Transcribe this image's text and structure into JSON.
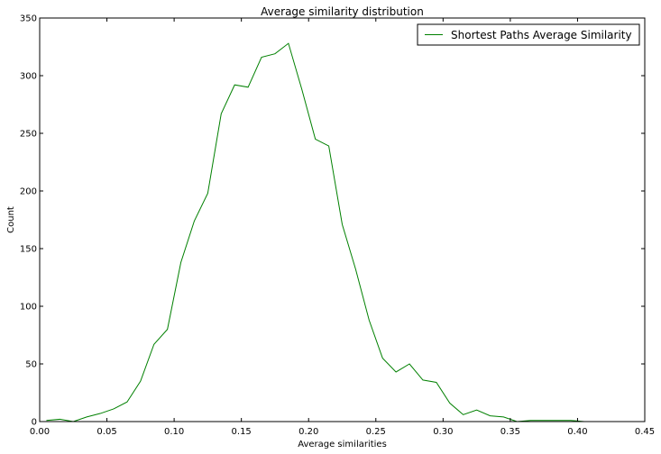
{
  "chart_data": {
    "type": "line",
    "title": "Average similarity distribution",
    "xlabel": "Average similarities",
    "ylabel": "Count",
    "xlim": [
      0.0,
      0.45
    ],
    "ylim": [
      0,
      350
    ],
    "xticks": [
      0.0,
      0.05,
      0.1,
      0.15,
      0.2,
      0.25,
      0.3,
      0.35,
      0.4,
      0.45
    ],
    "xtick_labels": [
      "0.00",
      "0.05",
      "0.10",
      "0.15",
      "0.20",
      "0.25",
      "0.30",
      "0.35",
      "0.40",
      "0.45"
    ],
    "yticks": [
      0,
      50,
      100,
      150,
      200,
      250,
      300,
      350
    ],
    "ytick_labels": [
      "0",
      "50",
      "100",
      "150",
      "200",
      "250",
      "300",
      "350"
    ],
    "grid": false,
    "legend_position": "top-right",
    "series": [
      {
        "name": "Shortest Paths Average Similarity",
        "color": "#008000",
        "x": [
          0.005,
          0.015,
          0.025,
          0.035,
          0.045,
          0.055,
          0.065,
          0.075,
          0.085,
          0.095,
          0.105,
          0.115,
          0.125,
          0.135,
          0.145,
          0.155,
          0.165,
          0.175,
          0.185,
          0.195,
          0.205,
          0.215,
          0.225,
          0.235,
          0.245,
          0.255,
          0.265,
          0.275,
          0.285,
          0.295,
          0.305,
          0.315,
          0.325,
          0.335,
          0.345,
          0.355,
          0.365,
          0.375,
          0.385,
          0.395,
          0.405
        ],
        "values": [
          1,
          2,
          0,
          4,
          7,
          11,
          17,
          35,
          67,
          80,
          138,
          174,
          198,
          267,
          292,
          290,
          316,
          319,
          328,
          288,
          245,
          239,
          171,
          132,
          88,
          55,
          43,
          50,
          36,
          34,
          16,
          6,
          10,
          5,
          4,
          0,
          1,
          1,
          1,
          1,
          0
        ]
      }
    ]
  }
}
